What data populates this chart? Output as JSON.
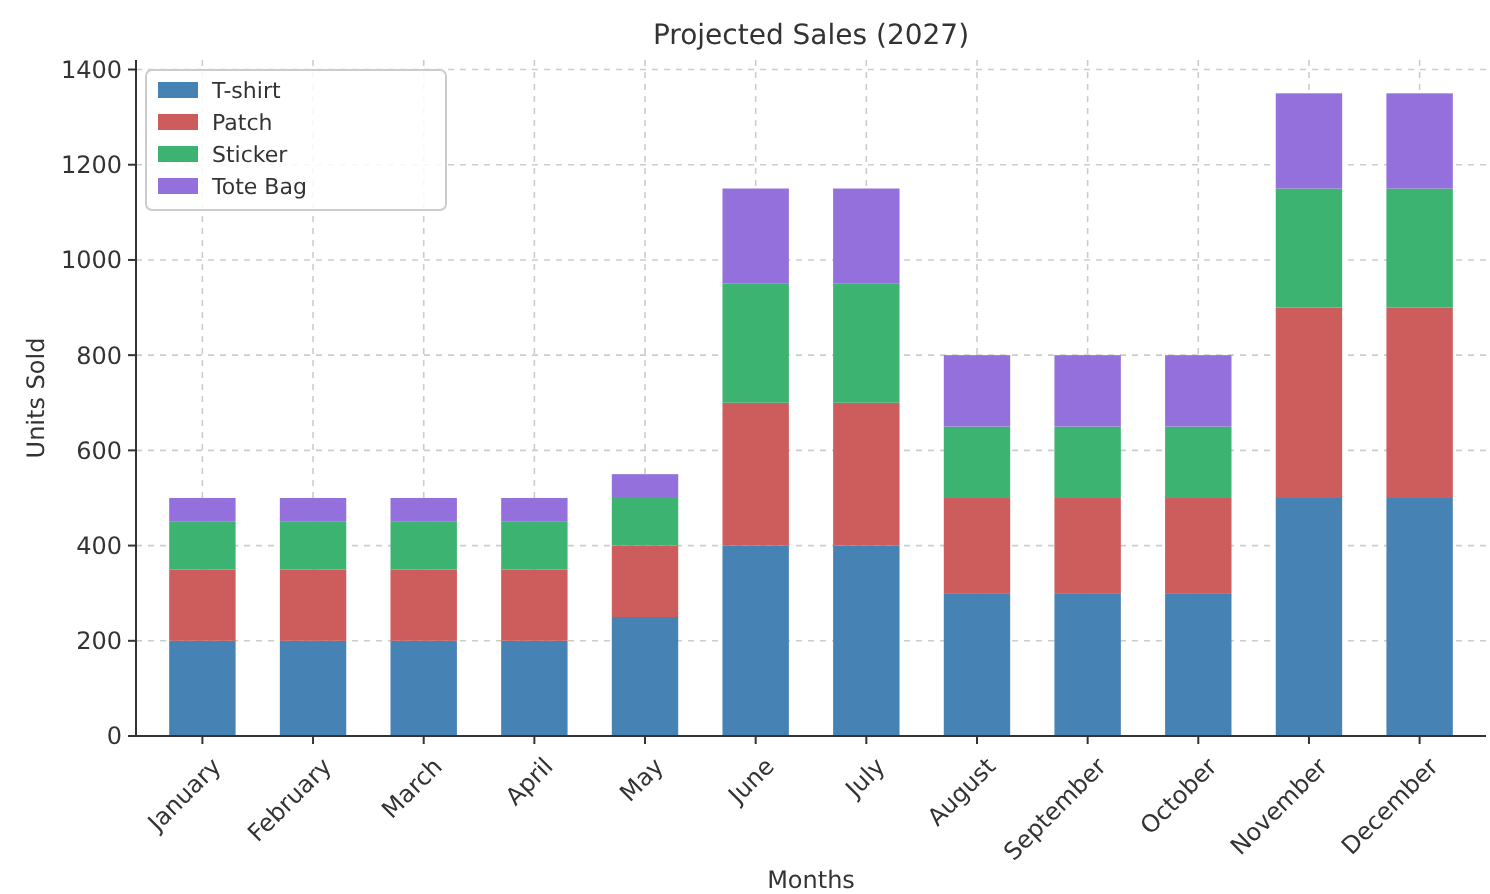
{
  "chart_data": {
    "type": "bar",
    "title": "Projected Sales (2027)",
    "xlabel": "Months",
    "ylabel": "Units Sold",
    "categories": [
      "January",
      "February",
      "March",
      "April",
      "May",
      "June",
      "July",
      "August",
      "September",
      "October",
      "November",
      "December"
    ],
    "stacked": true,
    "ylim": [
      0,
      1420
    ],
    "yticks": [
      0,
      200,
      400,
      600,
      800,
      1000,
      1200,
      1400
    ],
    "grid": true,
    "legend": "top left",
    "series": [
      {
        "name": "T-shirt",
        "color": "#4682b4",
        "values": [
          200,
          200,
          200,
          200,
          250,
          400,
          400,
          300,
          300,
          300,
          500,
          500
        ]
      },
      {
        "name": "Patch",
        "color": "#cd5c5c",
        "values": [
          150,
          150,
          150,
          150,
          150,
          300,
          300,
          200,
          200,
          200,
          400,
          400
        ]
      },
      {
        "name": "Sticker",
        "color": "#3cb371",
        "values": [
          100,
          100,
          100,
          100,
          100,
          250,
          250,
          150,
          150,
          150,
          250,
          250
        ]
      },
      {
        "name": "Tote Bag",
        "color": "#9370db",
        "values": [
          50,
          50,
          50,
          50,
          50,
          200,
          200,
          150,
          150,
          150,
          200,
          200
        ]
      }
    ]
  }
}
